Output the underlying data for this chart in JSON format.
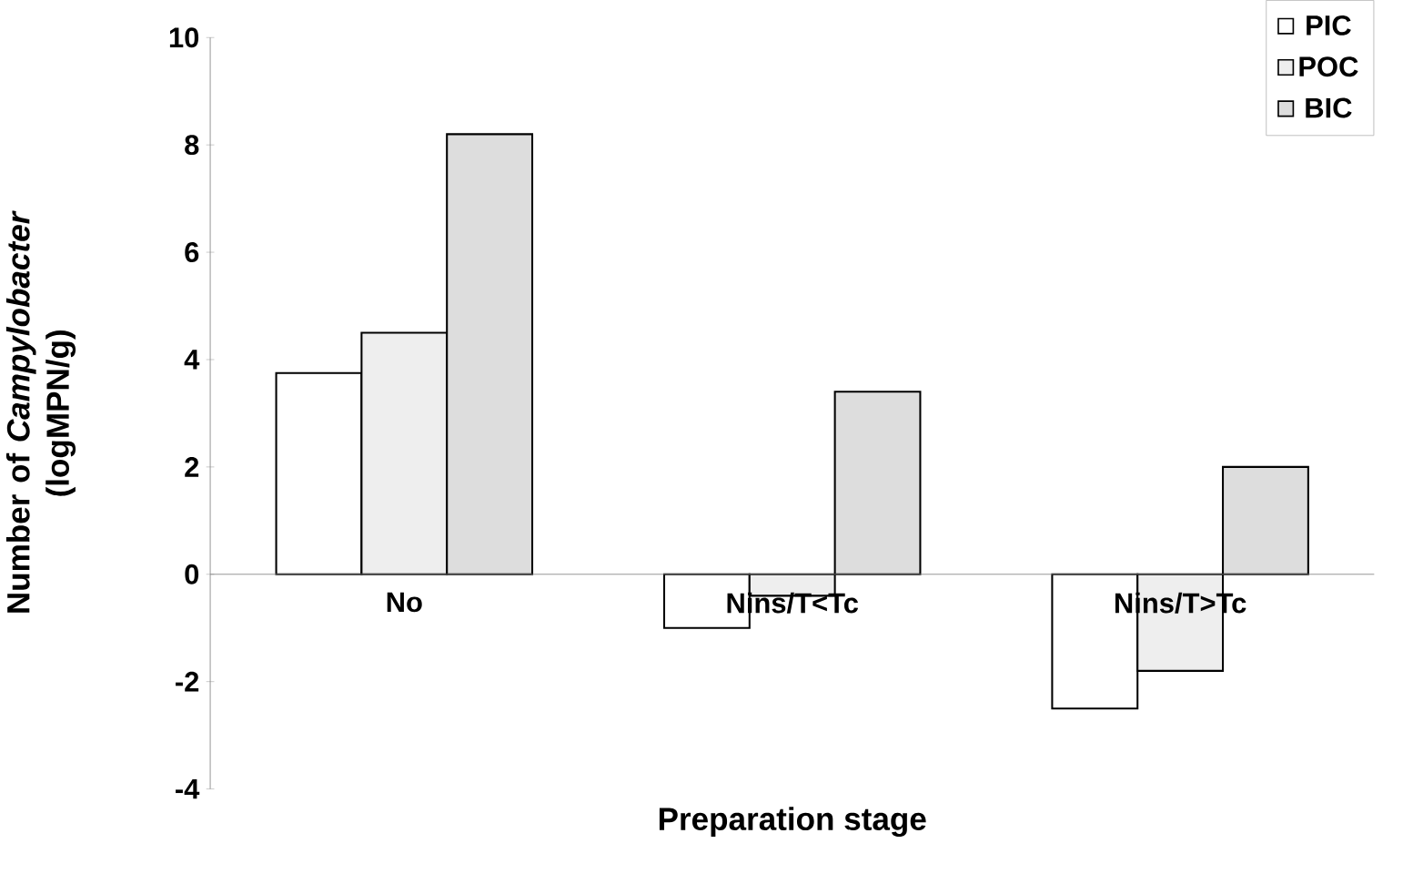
{
  "chart_data": {
    "type": "bar",
    "xlabel": "Preparation stage",
    "ylabel": "Number of *Campylobacter* (logMPN/g)",
    "categories": [
      "No",
      "Nins/T<Tc",
      "Nins/T>Tc"
    ],
    "series": [
      {
        "name": "PIC",
        "color": "#ffffff",
        "values": [
          3.75,
          -1.0,
          -2.5
        ]
      },
      {
        "name": "POC",
        "color": "#eeeeee",
        "values": [
          4.5,
          -0.4,
          -1.8
        ]
      },
      {
        "name": "BIC",
        "color": "#dddddd",
        "values": [
          8.2,
          3.4,
          2.0
        ]
      }
    ],
    "ylim": [
      -4,
      10
    ],
    "yticks": [
      -4,
      -2,
      0,
      2,
      4,
      6,
      8,
      10
    ],
    "grid": false,
    "legend": "top right"
  }
}
